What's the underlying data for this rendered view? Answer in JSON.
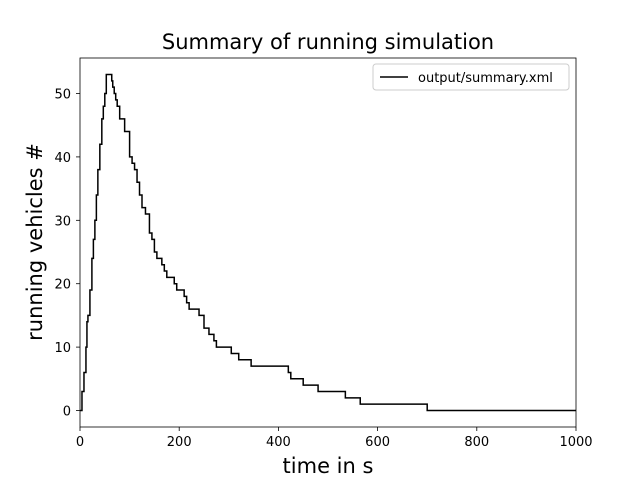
{
  "chart_data": {
    "type": "line",
    "title": "Summary of running simulation",
    "xlabel": "time in s",
    "ylabel": "running vehicles #",
    "xlim": [
      0,
      1000
    ],
    "ylim": [
      -2.6,
      55.6
    ],
    "xticks": [
      0,
      200,
      400,
      600,
      800,
      1000
    ],
    "yticks": [
      0,
      10,
      20,
      30,
      40,
      50
    ],
    "grid": false,
    "legend_position": "top-right",
    "series": [
      {
        "name": "output/summary.xml",
        "color": "#000000",
        "step": true,
        "x": [
          0,
          4,
          8,
          12,
          14,
          16,
          20,
          24,
          27,
          30,
          33,
          36,
          40,
          44,
          47,
          50,
          53,
          56,
          59,
          62,
          64,
          66,
          69,
          72,
          75,
          80,
          85,
          90,
          95,
          100,
          105,
          110,
          115,
          120,
          125,
          128,
          132,
          140,
          145,
          150,
          155,
          160,
          165,
          170,
          175,
          190,
          195,
          200,
          210,
          215,
          220,
          225,
          230,
          235,
          240,
          250,
          255,
          260,
          270,
          275,
          285,
          290,
          295,
          305,
          320,
          345,
          350,
          360,
          380,
          415,
          420,
          425,
          450,
          475,
          480,
          500,
          520,
          535,
          565,
          600,
          650,
          695,
          700,
          750,
          800,
          850,
          900,
          950,
          1000
        ],
        "y": [
          0,
          3,
          6,
          10,
          14,
          15,
          19,
          24,
          27,
          30,
          34,
          38,
          42,
          46,
          48,
          50,
          53,
          53,
          53,
          53,
          52,
          51,
          50,
          49,
          48,
          46,
          46,
          44,
          44,
          40,
          39,
          38,
          36,
          34,
          32,
          32,
          31,
          28,
          27,
          25,
          24,
          24,
          23,
          22,
          21,
          20,
          19,
          19,
          18,
          17,
          16,
          16,
          16,
          16,
          15,
          13,
          13,
          12,
          11,
          10,
          10,
          10,
          10,
          9,
          8,
          7,
          7,
          7,
          7,
          7,
          6,
          5,
          4,
          4,
          3,
          3,
          3,
          2,
          1,
          1,
          1,
          1,
          0,
          0,
          0,
          0,
          0,
          0,
          0
        ]
      }
    ]
  }
}
